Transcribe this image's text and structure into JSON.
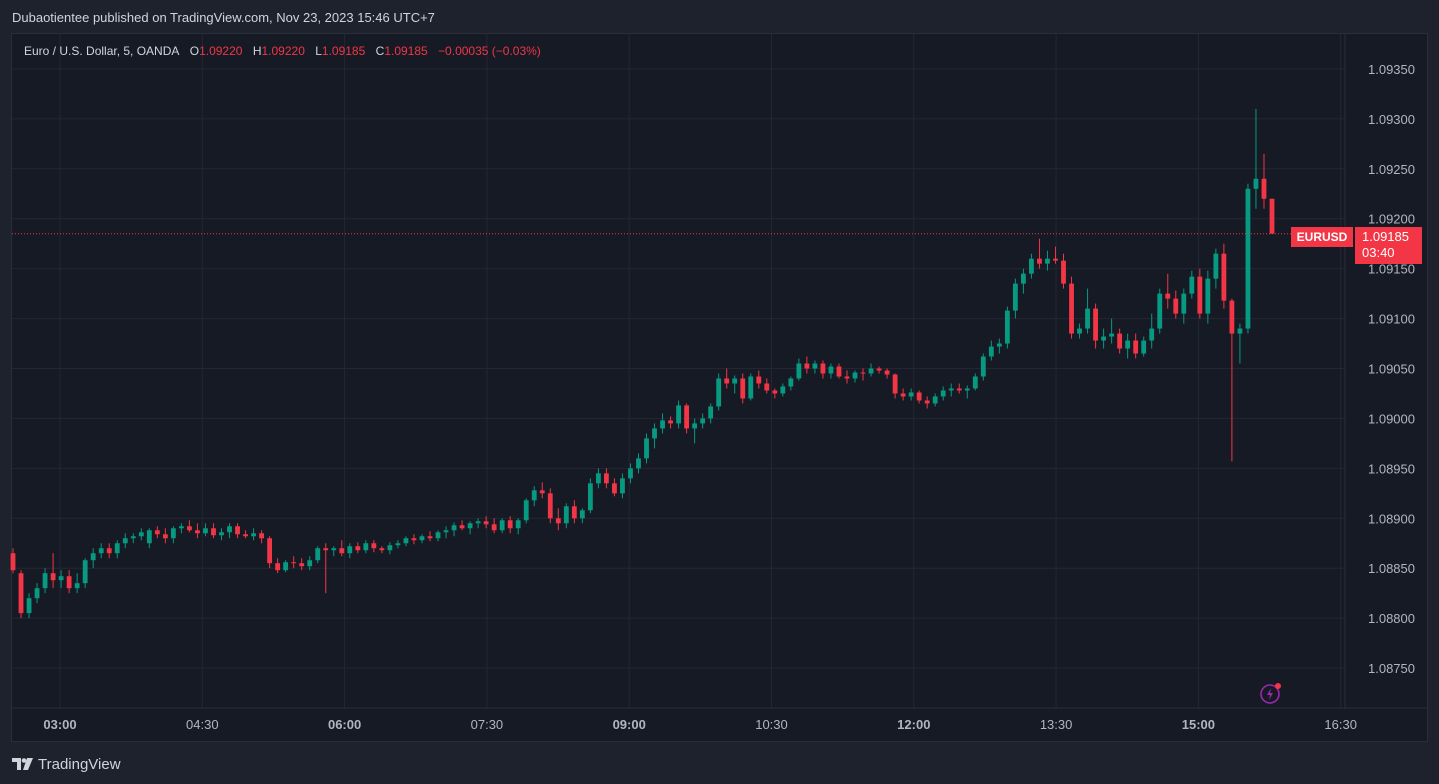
{
  "header": {
    "text": "Dubaotientee published on TradingView.com, Nov 23, 2023 15:46 UTC+7"
  },
  "legend": {
    "symbol": "Euro / U.S. Dollar, 5, OANDA",
    "o_label": "O",
    "o_value": "1.09220",
    "h_label": "H",
    "h_value": "1.09220",
    "l_label": "L",
    "l_value": "1.09185",
    "c_label": "C",
    "c_value": "1.09185",
    "change": "−0.00035 (−0.03%)"
  },
  "price_tag": {
    "symbol": "EURUSD",
    "price": "1.09185",
    "countdown": "03:40"
  },
  "footer": {
    "brand": "TradingView"
  },
  "colors": {
    "up": "#089981",
    "down": "#f23645",
    "background": "#161a25",
    "grid": "#242733",
    "accent": "#f23645"
  },
  "icons": {
    "logo": "tradingview-logo-icon",
    "bolt": "lightning-bolt-icon"
  },
  "chart_data": {
    "type": "candlestick",
    "symbol": "EURUSD",
    "interval_minutes": 5,
    "y_ticks": [
      "1.09350",
      "1.09300",
      "1.09250",
      "1.09200",
      "1.09150",
      "1.09100",
      "1.09050",
      "1.09000",
      "1.08950",
      "1.08900",
      "1.08850",
      "1.08800",
      "1.08750"
    ],
    "x_ticks": [
      {
        "label": "03:00",
        "bold": true
      },
      {
        "label": "04:30",
        "bold": false
      },
      {
        "label": "06:00",
        "bold": true
      },
      {
        "label": "07:30",
        "bold": false
      },
      {
        "label": "09:00",
        "bold": true
      },
      {
        "label": "10:30",
        "bold": false
      },
      {
        "label": "12:00",
        "bold": true
      },
      {
        "label": "13:30",
        "bold": false
      },
      {
        "label": "15:00",
        "bold": true
      },
      {
        "label": "16:30",
        "bold": false
      }
    ],
    "ylim": [
      1.0871,
      1.09385
    ],
    "current_price": 1.09185,
    "candles_ohlc": [
      [
        1.08865,
        1.0887,
        1.08845,
        1.08848
      ],
      [
        1.08845,
        1.08848,
        1.088,
        1.08805
      ],
      [
        1.08805,
        1.08825,
        1.088,
        1.0882
      ],
      [
        1.0882,
        1.08835,
        1.08815,
        1.0883
      ],
      [
        1.0883,
        1.0885,
        1.08825,
        1.08845
      ],
      [
        1.08845,
        1.08865,
        1.0883,
        1.08838
      ],
      [
        1.08838,
        1.08848,
        1.0883,
        1.08842
      ],
      [
        1.08842,
        1.08848,
        1.08825,
        1.0883
      ],
      [
        1.0883,
        1.08845,
        1.08825,
        1.08835
      ],
      [
        1.08835,
        1.0886,
        1.0883,
        1.08858
      ],
      [
        1.08858,
        1.0887,
        1.0885,
        1.08865
      ],
      [
        1.08865,
        1.08875,
        1.0886,
        1.0887
      ],
      [
        1.0887,
        1.08875,
        1.0886,
        1.08865
      ],
      [
        1.08865,
        1.08878,
        1.0886,
        1.08875
      ],
      [
        1.08875,
        1.08885,
        1.0887,
        1.0888
      ],
      [
        1.0888,
        1.08885,
        1.08875,
        1.08882
      ],
      [
        1.08882,
        1.0889,
        1.08878,
        1.08886
      ],
      [
        1.08875,
        1.0889,
        1.0887,
        1.08888
      ],
      [
        1.08888,
        1.08892,
        1.0888,
        1.08884
      ],
      [
        1.08884,
        1.0889,
        1.08875,
        1.0888
      ],
      [
        1.0888,
        1.08892,
        1.08875,
        1.0889
      ],
      [
        1.0889,
        1.08895,
        1.08885,
        1.08892
      ],
      [
        1.08892,
        1.08898,
        1.08886,
        1.08888
      ],
      [
        1.08888,
        1.08895,
        1.0888,
        1.08885
      ],
      [
        1.08885,
        1.08895,
        1.08882,
        1.0889
      ],
      [
        1.0889,
        1.08895,
        1.0888,
        1.08883
      ],
      [
        1.08883,
        1.0889,
        1.08878,
        1.08886
      ],
      [
        1.08886,
        1.08895,
        1.0888,
        1.08892
      ],
      [
        1.08892,
        1.08895,
        1.0888,
        1.08884
      ],
      [
        1.08884,
        1.08888,
        1.0888,
        1.08882
      ],
      [
        1.08882,
        1.0889,
        1.08878,
        1.08885
      ],
      [
        1.08885,
        1.08888,
        1.08875,
        1.0888
      ],
      [
        1.0888,
        1.08882,
        1.0885,
        1.08855
      ],
      [
        1.08855,
        1.0886,
        1.08845,
        1.08848
      ],
      [
        1.08848,
        1.08858,
        1.08846,
        1.08856
      ],
      [
        1.08856,
        1.08862,
        1.0885,
        1.08855
      ],
      [
        1.08855,
        1.0886,
        1.08848,
        1.08852
      ],
      [
        1.08852,
        1.08862,
        1.08848,
        1.08858
      ],
      [
        1.08858,
        1.08872,
        1.08855,
        1.0887
      ],
      [
        1.0887,
        1.08875,
        1.08825,
        1.08868
      ],
      [
        1.08868,
        1.08872,
        1.08862,
        1.0887
      ],
      [
        1.0887,
        1.08878,
        1.08862,
        1.08865
      ],
      [
        1.08865,
        1.08875,
        1.0886,
        1.08872
      ],
      [
        1.08872,
        1.08876,
        1.08865,
        1.08868
      ],
      [
        1.08868,
        1.08878,
        1.08865,
        1.08875
      ],
      [
        1.08875,
        1.08878,
        1.08866,
        1.0887
      ],
      [
        1.0887,
        1.08872,
        1.08865,
        1.08868
      ],
      [
        1.08868,
        1.08876,
        1.08864,
        1.08873
      ],
      [
        1.08873,
        1.08878,
        1.0887,
        1.08875
      ],
      [
        1.08875,
        1.08882,
        1.08872,
        1.0888
      ],
      [
        1.0888,
        1.08884,
        1.08874,
        1.08878
      ],
      [
        1.08878,
        1.08884,
        1.08875,
        1.08882
      ],
      [
        1.08882,
        1.08887,
        1.08877,
        1.0888
      ],
      [
        1.0888,
        1.08888,
        1.08877,
        1.08886
      ],
      [
        1.08886,
        1.08892,
        1.0888,
        1.08888
      ],
      [
        1.08888,
        1.08896,
        1.08882,
        1.08893
      ],
      [
        1.08893,
        1.08898,
        1.08888,
        1.0889
      ],
      [
        1.0889,
        1.08897,
        1.08884,
        1.08895
      ],
      [
        1.08895,
        1.089,
        1.0889,
        1.08897
      ],
      [
        1.08897,
        1.08902,
        1.0889,
        1.08894
      ],
      [
        1.08894,
        1.089,
        1.08885,
        1.08888
      ],
      [
        1.08888,
        1.089,
        1.08885,
        1.08898
      ],
      [
        1.08898,
        1.08902,
        1.08885,
        1.0889
      ],
      [
        1.0889,
        1.089,
        1.08884,
        1.08898
      ],
      [
        1.08898,
        1.0892,
        1.08895,
        1.08918
      ],
      [
        1.08918,
        1.08932,
        1.08912,
        1.08928
      ],
      [
        1.08928,
        1.08936,
        1.0892,
        1.08925
      ],
      [
        1.08925,
        1.0893,
        1.08895,
        1.089
      ],
      [
        1.089,
        1.0891,
        1.08888,
        1.08895
      ],
      [
        1.08895,
        1.08915,
        1.0889,
        1.08912
      ],
      [
        1.08912,
        1.08918,
        1.08895,
        1.089
      ],
      [
        1.089,
        1.0891,
        1.08895,
        1.08908
      ],
      [
        1.08908,
        1.0894,
        1.08905,
        1.08935
      ],
      [
        1.08935,
        1.0895,
        1.0893,
        1.08945
      ],
      [
        1.08945,
        1.0895,
        1.0893,
        1.08935
      ],
      [
        1.08935,
        1.0894,
        1.08922,
        1.08925
      ],
      [
        1.08925,
        1.08945,
        1.0892,
        1.0894
      ],
      [
        1.0894,
        1.08955,
        1.08935,
        1.0895
      ],
      [
        1.0895,
        1.08965,
        1.08945,
        1.0896
      ],
      [
        1.0896,
        1.08985,
        1.08955,
        1.0898
      ],
      [
        1.0898,
        1.08995,
        1.0897,
        1.0899
      ],
      [
        1.0899,
        1.09005,
        1.08985,
        1.08998
      ],
      [
        1.08998,
        1.09002,
        1.0899,
        1.08995
      ],
      [
        1.08995,
        1.09018,
        1.0899,
        1.09013
      ],
      [
        1.09013,
        1.09015,
        1.08985,
        1.0899
      ],
      [
        1.0899,
        1.09,
        1.08975,
        1.08995
      ],
      [
        1.08995,
        1.09005,
        1.0899,
        1.09
      ],
      [
        1.09,
        1.09015,
        1.08995,
        1.09012
      ],
      [
        1.09012,
        1.09045,
        1.09008,
        1.0904
      ],
      [
        1.0904,
        1.0905,
        1.0903,
        1.09035
      ],
      [
        1.09035,
        1.09043,
        1.09025,
        1.0904
      ],
      [
        1.0904,
        1.09045,
        1.09015,
        1.0902
      ],
      [
        1.0902,
        1.09045,
        1.09018,
        1.09042
      ],
      [
        1.09042,
        1.09048,
        1.0903,
        1.09035
      ],
      [
        1.09035,
        1.0904,
        1.09025,
        1.09028
      ],
      [
        1.09028,
        1.0903,
        1.0902,
        1.09025
      ],
      [
        1.09025,
        1.09035,
        1.09022,
        1.09032
      ],
      [
        1.09032,
        1.09042,
        1.09028,
        1.0904
      ],
      [
        1.0904,
        1.0906,
        1.09038,
        1.09055
      ],
      [
        1.09055,
        1.09062,
        1.09045,
        1.0905
      ],
      [
        1.0905,
        1.09058,
        1.09045,
        1.09055
      ],
      [
        1.09055,
        1.09058,
        1.0904,
        1.09045
      ],
      [
        1.09045,
        1.09055,
        1.0904,
        1.09052
      ],
      [
        1.09052,
        1.09055,
        1.0904,
        1.09042
      ],
      [
        1.09042,
        1.09048,
        1.09035,
        1.0904
      ],
      [
        1.0904,
        1.09048,
        1.09036,
        1.09046
      ],
      [
        1.09046,
        1.0905,
        1.09038,
        1.09045
      ],
      [
        1.09045,
        1.09055,
        1.09042,
        1.0905
      ],
      [
        1.0905,
        1.09052,
        1.09045,
        1.09048
      ],
      [
        1.09048,
        1.0905,
        1.0904,
        1.09044
      ],
      [
        1.09044,
        1.09045,
        1.0902,
        1.09025
      ],
      [
        1.09025,
        1.0903,
        1.09018,
        1.09022
      ],
      [
        1.09022,
        1.0903,
        1.09018,
        1.09026
      ],
      [
        1.09026,
        1.09028,
        1.09015,
        1.09018
      ],
      [
        1.09018,
        1.09022,
        1.0901,
        1.09015
      ],
      [
        1.09015,
        1.09025,
        1.09012,
        1.09022
      ],
      [
        1.09022,
        1.09032,
        1.09018,
        1.09028
      ],
      [
        1.09028,
        1.09035,
        1.09022,
        1.0903
      ],
      [
        1.0903,
        1.09035,
        1.09025,
        1.09028
      ],
      [
        1.09028,
        1.09033,
        1.0902,
        1.0903
      ],
      [
        1.0903,
        1.09045,
        1.09028,
        1.09042
      ],
      [
        1.09042,
        1.09065,
        1.09038,
        1.09062
      ],
      [
        1.09062,
        1.09078,
        1.09058,
        1.09072
      ],
      [
        1.09072,
        1.0908,
        1.09065,
        1.09075
      ],
      [
        1.09075,
        1.09112,
        1.0907,
        1.09108
      ],
      [
        1.09108,
        1.0914,
        1.091,
        1.09135
      ],
      [
        1.09135,
        1.0915,
        1.09125,
        1.09145
      ],
      [
        1.09145,
        1.09165,
        1.0914,
        1.0916
      ],
      [
        1.0916,
        1.0918,
        1.0915,
        1.09155
      ],
      [
        1.09155,
        1.09168,
        1.09148,
        1.0916
      ],
      [
        1.0916,
        1.09172,
        1.09155,
        1.09158
      ],
      [
        1.09158,
        1.09165,
        1.0913,
        1.09135
      ],
      [
        1.09135,
        1.09142,
        1.0908,
        1.09085
      ],
      [
        1.09085,
        1.09095,
        1.0908,
        1.0909
      ],
      [
        1.0909,
        1.0913,
        1.09085,
        1.0911
      ],
      [
        1.0911,
        1.09115,
        1.0907,
        1.09078
      ],
      [
        1.09078,
        1.0909,
        1.0907,
        1.09082
      ],
      [
        1.09082,
        1.091,
        1.09075,
        1.09085
      ],
      [
        1.09085,
        1.0909,
        1.09065,
        1.0907
      ],
      [
        1.0907,
        1.09085,
        1.0906,
        1.09078
      ],
      [
        1.09078,
        1.09085,
        1.0906,
        1.09065
      ],
      [
        1.09065,
        1.09082,
        1.09062,
        1.09078
      ],
      [
        1.09078,
        1.09105,
        1.0907,
        1.0909
      ],
      [
        1.0909,
        1.0913,
        1.09085,
        1.09125
      ],
      [
        1.09125,
        1.09145,
        1.0911,
        1.0912
      ],
      [
        1.0912,
        1.09128,
        1.091,
        1.09105
      ],
      [
        1.09105,
        1.0913,
        1.09095,
        1.09125
      ],
      [
        1.09125,
        1.09148,
        1.0912,
        1.09142
      ],
      [
        1.09142,
        1.0915,
        1.091,
        1.09105
      ],
      [
        1.09105,
        1.09148,
        1.09095,
        1.0914
      ],
      [
        1.0914,
        1.0917,
        1.0913,
        1.09165
      ],
      [
        1.09165,
        1.09175,
        1.0911,
        1.09118
      ],
      [
        1.09118,
        1.0912,
        1.08957,
        1.09085
      ],
      [
        1.09085,
        1.09095,
        1.09055,
        1.0909
      ],
      [
        1.0909,
        1.09235,
        1.09085,
        1.0923
      ],
      [
        1.0923,
        1.0931,
        1.0921,
        1.0924
      ],
      [
        1.0924,
        1.09265,
        1.0921,
        1.0922
      ],
      [
        1.0922,
        1.0922,
        1.09185,
        1.09185
      ]
    ]
  }
}
